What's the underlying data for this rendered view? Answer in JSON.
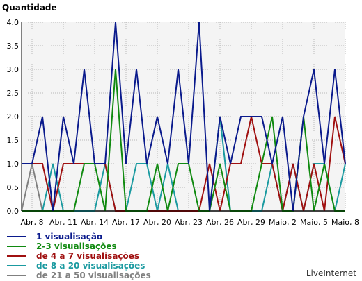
{
  "chart_data": {
    "type": "line",
    "title": "Quantidade",
    "xlabel": "",
    "ylabel": "",
    "ylim": [
      0,
      4
    ],
    "yticks": [
      "0.0",
      "0.5",
      "1.0",
      "1.5",
      "2.0",
      "2.5",
      "3.0",
      "3.5",
      "4.0"
    ],
    "xticks": [
      "Abr, 8",
      "Abr, 11",
      "Abr, 14",
      "Abr, 17",
      "Abr, 20",
      "Abr, 23",
      "Abr, 26",
      "Abr, 29",
      "Maio, 2",
      "Maio, 5",
      "Maio, 8"
    ],
    "grid": true,
    "legend_position": "bottom-left",
    "x": [
      "Abr, 7",
      "Abr, 8",
      "Abr, 9",
      "Abr, 10",
      "Abr, 11",
      "Abr, 12",
      "Abr, 13",
      "Abr, 14",
      "Abr, 15",
      "Abr, 16",
      "Abr, 17",
      "Abr, 18",
      "Abr, 19",
      "Abr, 20",
      "Abr, 21",
      "Abr, 22",
      "Abr, 23",
      "Abr, 24",
      "Abr, 25",
      "Abr, 26",
      "Abr, 27",
      "Abr, 28",
      "Abr, 29",
      "Abr, 30",
      "Maio, 1",
      "Maio, 2",
      "Maio, 3",
      "Maio, 4",
      "Maio, 5",
      "Maio, 6",
      "Maio, 7",
      "Maio, 8"
    ],
    "series": [
      {
        "name": "1 visualisação",
        "color": "#0a1a8c",
        "values": [
          1,
          1,
          2,
          0,
          2,
          1,
          3,
          1,
          1,
          4,
          1,
          3,
          1,
          2,
          1,
          3,
          1,
          4,
          0,
          2,
          1,
          2,
          2,
          2,
          1,
          2,
          0,
          2,
          3,
          1,
          3,
          1
        ]
      },
      {
        "name": "2-3 visualisações",
        "color": "#108a10",
        "values": [
          0,
          0,
          0,
          0,
          0,
          0,
          1,
          1,
          0,
          3,
          0,
          0,
          0,
          1,
          0,
          1,
          1,
          0,
          0,
          1,
          0,
          0,
          0,
          1,
          2,
          0,
          0,
          2,
          0,
          1,
          0,
          0
        ]
      },
      {
        "name": "de 4 a 7 visualisações",
        "color": "#a01010",
        "values": [
          1,
          1,
          1,
          0,
          1,
          1,
          1,
          1,
          1,
          0,
          0,
          0,
          0,
          0,
          0,
          0,
          0,
          0,
          1,
          0,
          1,
          1,
          2,
          1,
          1,
          0,
          1,
          0,
          1,
          0,
          2,
          1
        ]
      },
      {
        "name": "de 8 a 20 visualisações",
        "color": "#1a9aa0",
        "values": [
          0,
          0,
          0,
          1,
          0,
          0,
          0,
          0,
          1,
          0,
          0,
          1,
          1,
          0,
          1,
          0,
          0,
          0,
          0,
          2,
          0,
          0,
          0,
          0,
          1,
          0,
          1,
          0,
          1,
          1,
          0,
          1
        ]
      },
      {
        "name": "de 21 a 50 visualisações",
        "color": "#808080",
        "values": [
          0,
          1,
          0,
          0,
          0,
          0,
          0,
          0,
          0,
          0,
          0,
          0,
          0,
          0,
          0,
          0,
          0,
          0,
          0,
          0,
          0,
          0,
          0,
          0,
          0,
          0,
          0,
          0,
          0,
          0,
          0,
          0
        ]
      }
    ]
  },
  "brand": "LiveInternet"
}
